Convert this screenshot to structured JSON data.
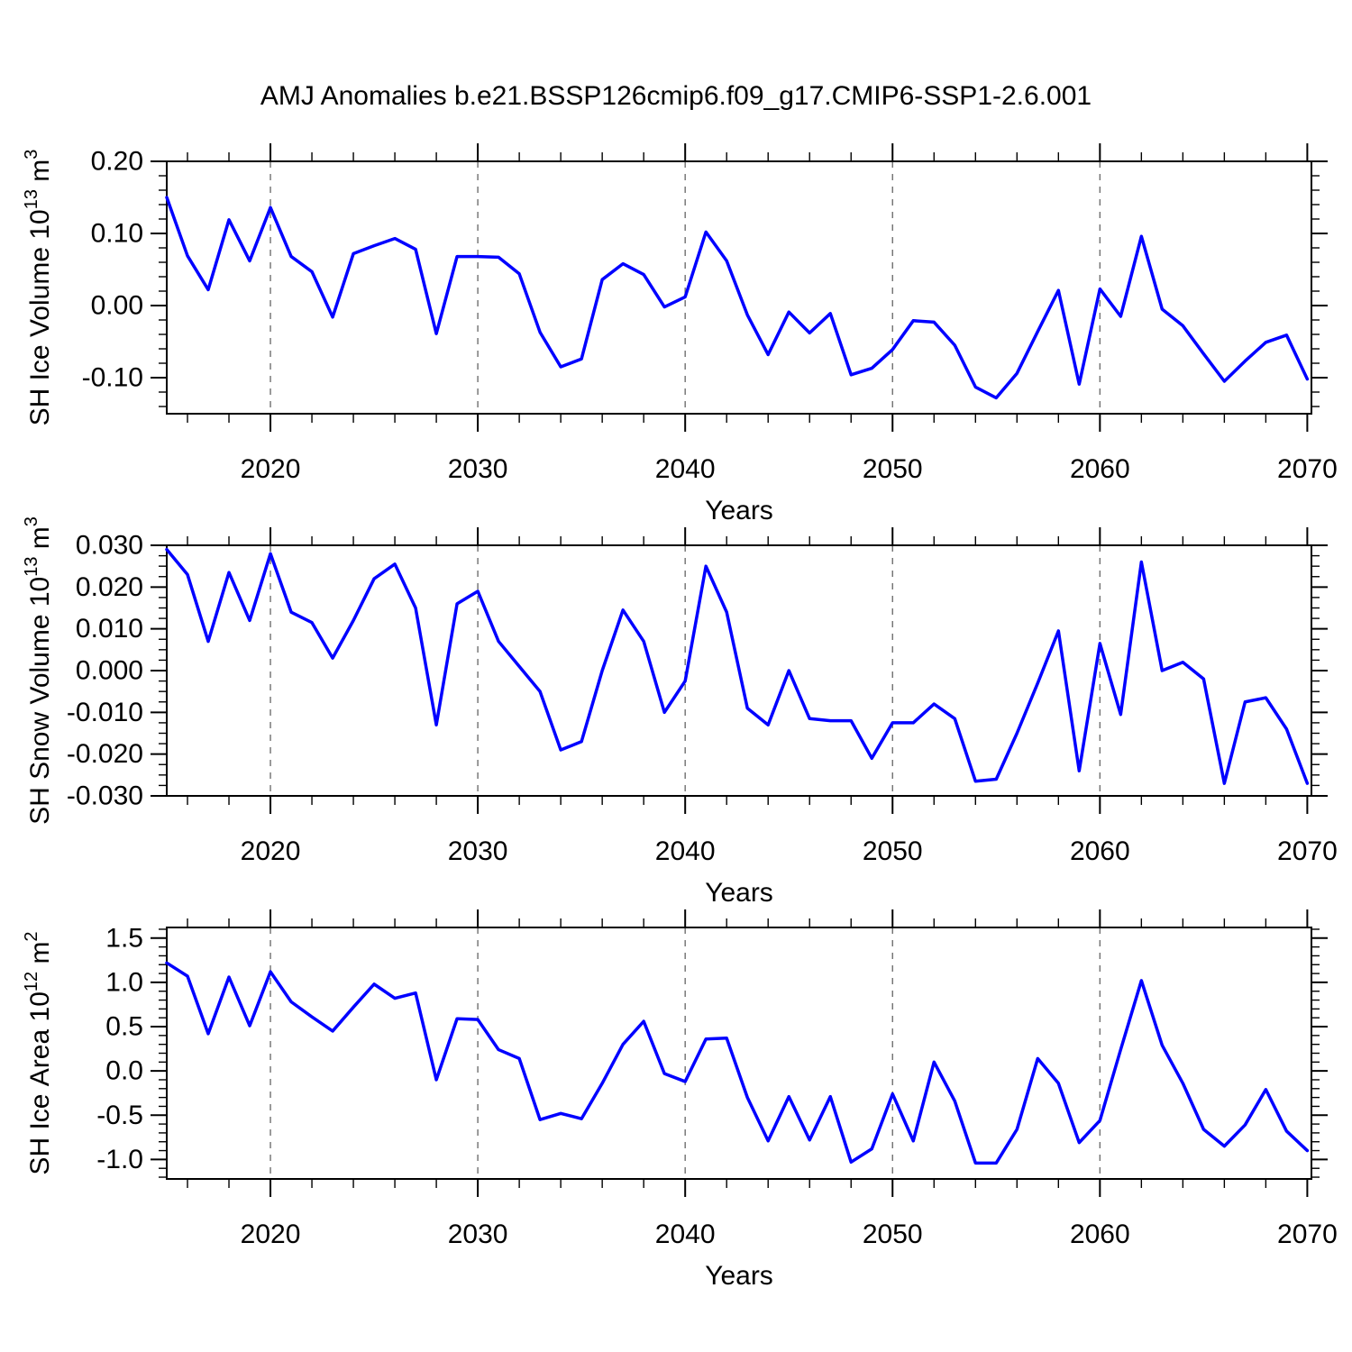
{
  "title": "AMJ Anomalies b.e21.BSSP126cmip6.f09_g17.CMIP6-SSP1-2.6.001",
  "colors": {
    "line": "#0000ff",
    "grid": "#707070",
    "axis": "#000000",
    "background": "#ffffff",
    "text": "#000000"
  },
  "years": [
    2015,
    2016,
    2017,
    2018,
    2019,
    2020,
    2021,
    2022,
    2023,
    2024,
    2025,
    2026,
    2027,
    2028,
    2029,
    2030,
    2031,
    2032,
    2033,
    2034,
    2035,
    2036,
    2037,
    2038,
    2039,
    2040,
    2041,
    2042,
    2043,
    2044,
    2045,
    2046,
    2047,
    2048,
    2049,
    2050,
    2051,
    2052,
    2053,
    2054,
    2055,
    2056,
    2057,
    2058,
    2059,
    2060,
    2061,
    2062,
    2063,
    2064,
    2065,
    2066,
    2067,
    2068,
    2069,
    2070
  ],
  "x_axis": {
    "label": "Years",
    "xlim": [
      2015,
      2070.2
    ],
    "major_ticks": [
      2020,
      2030,
      2040,
      2050,
      2060,
      2070
    ],
    "major_tick_labels": [
      "2020",
      "2030",
      "2040",
      "2050",
      "2060",
      "2070"
    ],
    "minor_step": 2,
    "grid_years": [
      2020,
      2030,
      2040,
      2050,
      2060
    ]
  },
  "chart_data": [
    {
      "type": "line",
      "id": "sh-ice-volume",
      "title": "",
      "xlabel": "Years",
      "ylabel_text": "SH Ice Volume 10^13 m^3",
      "ylabel_parts": [
        {
          "t": "SH Ice Volume 10"
        },
        {
          "t": "13",
          "sup": true
        },
        {
          "t": " m"
        },
        {
          "t": "3",
          "sup": true
        }
      ],
      "ylim": [
        -0.15,
        0.2
      ],
      "ytick_vals": [
        0.2,
        0.1,
        0.0,
        -0.1
      ],
      "ytick_labels": [
        "0.20",
        "0.10",
        "0.00",
        "-0.10"
      ],
      "yminor_step": 0.02,
      "grid": "vertical-dashed-only",
      "legend": "none",
      "values": [
        0.15,
        0.069,
        0.022,
        0.119,
        0.062,
        0.136,
        0.068,
        0.047,
        -0.016,
        0.072,
        0.083,
        0.093,
        0.078,
        -0.039,
        0.068,
        0.068,
        0.067,
        0.044,
        -0.037,
        -0.085,
        -0.074,
        0.036,
        0.058,
        0.043,
        -0.002,
        0.012,
        0.102,
        0.062,
        -0.013,
        -0.068,
        -0.009,
        -0.038,
        -0.011,
        -0.096,
        -0.087,
        -0.061,
        -0.021,
        -0.023,
        -0.055,
        -0.113,
        -0.128,
        -0.094,
        -0.036,
        0.021,
        -0.109,
        0.023,
        -0.015,
        0.096,
        -0.005,
        -0.028,
        -0.067,
        -0.105,
        -0.077,
        -0.051,
        -0.041,
        -0.102
      ]
    },
    {
      "type": "line",
      "id": "sh-snow-volume",
      "title": "",
      "xlabel": "Years",
      "ylabel_text": "SH Snow Volume 10^13 m^3",
      "ylabel_parts": [
        {
          "t": "SH Snow Volume 10"
        },
        {
          "t": "13",
          "sup": true
        },
        {
          "t": " m"
        },
        {
          "t": "3",
          "sup": true
        }
      ],
      "ylim": [
        -0.03,
        0.03
      ],
      "ytick_vals": [
        0.03,
        0.02,
        0.01,
        0.0,
        -0.01,
        -0.02,
        -0.03
      ],
      "ytick_labels": [
        "0.030",
        "0.020",
        "0.010",
        "0.000",
        "-0.010",
        "-0.020",
        "-0.030"
      ],
      "yminor_step": 0.0025,
      "grid": "vertical-dashed-only",
      "legend": "none",
      "values": [
        0.029,
        0.023,
        0.007,
        0.0235,
        0.012,
        0.028,
        0.014,
        0.0115,
        0.003,
        0.012,
        0.022,
        0.0255,
        0.015,
        -0.013,
        0.016,
        0.019,
        0.007,
        0.001,
        -0.005,
        -0.019,
        -0.017,
        0.0,
        0.0145,
        0.007,
        -0.01,
        -0.0025,
        0.025,
        0.014,
        -0.009,
        -0.013,
        0.0,
        -0.0115,
        -0.012,
        -0.012,
        -0.021,
        -0.0125,
        -0.0125,
        -0.008,
        -0.0115,
        -0.0265,
        -0.026,
        -0.015,
        -0.003,
        0.0095,
        -0.024,
        0.0065,
        -0.0105,
        0.026,
        0.0,
        0.002,
        -0.002,
        -0.027,
        -0.0075,
        -0.0065,
        -0.014,
        -0.027
      ]
    },
    {
      "type": "line",
      "id": "sh-ice-area",
      "title": "",
      "xlabel": "Years",
      "ylabel_text": "SH Ice Area 10^12 m^2",
      "ylabel_parts": [
        {
          "t": "SH Ice Area 10"
        },
        {
          "t": "12",
          "sup": true
        },
        {
          "t": " m"
        },
        {
          "t": "2",
          "sup": true
        }
      ],
      "ylim": [
        -1.22,
        1.62
      ],
      "ytick_vals": [
        1.5,
        1.0,
        0.5,
        0.0,
        -0.5,
        -1.0
      ],
      "ytick_labels": [
        "1.5",
        "1.0",
        "0.5",
        "0.0",
        "-0.5",
        "-1.0"
      ],
      "yminor_step": 0.1,
      "grid": "vertical-dashed-only",
      "legend": "none",
      "values": [
        1.22,
        1.07,
        0.42,
        1.06,
        0.51,
        1.12,
        0.78,
        0.61,
        0.45,
        0.72,
        0.98,
        0.82,
        0.88,
        -0.1,
        0.59,
        0.58,
        0.24,
        0.14,
        -0.55,
        -0.48,
        -0.54,
        -0.14,
        0.3,
        0.56,
        -0.03,
        -0.12,
        0.36,
        0.37,
        -0.3,
        -0.79,
        -0.29,
        -0.78,
        -0.29,
        -1.03,
        -0.88,
        -0.26,
        -0.79,
        0.1,
        -0.34,
        -1.04,
        -1.04,
        -0.66,
        0.14,
        -0.14,
        -0.81,
        -0.56,
        0.24,
        1.02,
        0.29,
        -0.14,
        -0.66,
        -0.85,
        -0.61,
        -0.21,
        -0.68,
        -0.9
      ]
    }
  ]
}
